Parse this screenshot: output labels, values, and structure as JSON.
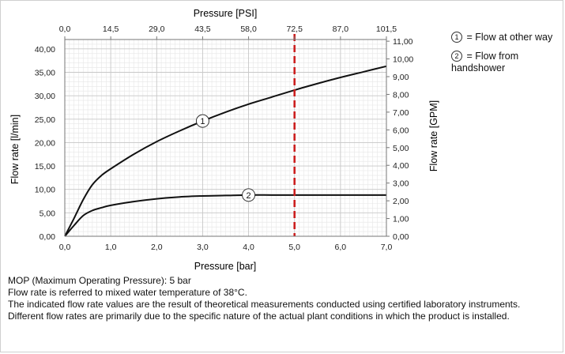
{
  "chart_data": {
    "type": "line",
    "top_axis_label": "Pressure [PSI]",
    "top_ticks": [
      "0,0",
      "14,5",
      "29,0",
      "43,5",
      "58,0",
      "72,5",
      "87,0",
      "101,5"
    ],
    "xlabel": "Pressure [bar]",
    "x_ticks": [
      "0,0",
      "1,0",
      "2,0",
      "3,0",
      "4,0",
      "5,0",
      "6,0",
      "7,0"
    ],
    "xlim": [
      0,
      7
    ],
    "ylabel_left": "Flow rate [l/min]",
    "y_left_ticks": [
      "0,00",
      "5,00",
      "10,00",
      "15,00",
      "20,00",
      "25,00",
      "30,00",
      "35,00",
      "40,00"
    ],
    "ylim_left": [
      0,
      42
    ],
    "ylabel_right": "Flow rate [GPM]",
    "y_right_ticks": [
      "0,00",
      "1,00",
      "2,00",
      "3,00",
      "4,00",
      "5,00",
      "6,00",
      "7,00",
      "8,00",
      "9,00",
      "10,00",
      "11,00"
    ],
    "ylim_right": [
      0,
      11.095
    ],
    "grid": true,
    "mop_line": {
      "x": 5.0,
      "color": "#cc1f1f"
    },
    "series": [
      {
        "marker": "1",
        "x": [
          0,
          0.2,
          0.4,
          0.6,
          0.8,
          1.0,
          1.5,
          2.0,
          2.5,
          3.0,
          3.5,
          4.0,
          4.5,
          5.0,
          5.5,
          6.0,
          6.5,
          7.0
        ],
        "y": [
          0,
          3.8,
          7.8,
          11.0,
          13.0,
          14.4,
          17.5,
          20.2,
          22.5,
          24.6,
          26.5,
          28.2,
          29.7,
          31.2,
          32.6,
          33.9,
          35.1,
          36.3
        ]
      },
      {
        "marker": "2",
        "x": [
          0,
          0.2,
          0.4,
          0.6,
          0.8,
          1.0,
          1.5,
          2.0,
          2.5,
          3.0,
          3.5,
          4.0,
          4.5,
          5.0,
          5.5,
          6.0,
          6.5,
          7.0
        ],
        "y": [
          0,
          2.3,
          4.4,
          5.5,
          6.1,
          6.6,
          7.4,
          8.0,
          8.4,
          8.6,
          8.7,
          8.8,
          8.8,
          8.8,
          8.8,
          8.8,
          8.8,
          8.8
        ]
      }
    ],
    "series_labels": [
      {
        "marker": "1",
        "x": 3.0,
        "y": 24.6
      },
      {
        "marker": "2",
        "x": 4.0,
        "y": 8.8
      }
    ]
  },
  "legend": [
    {
      "marker": "1",
      "text": "= Flow at other way"
    },
    {
      "marker": "2",
      "text": "= Flow from handshower"
    }
  ],
  "notes": [
    "MOP (Maximum Operating Pressure): 5 bar",
    "Flow rate is referred to mixed water temperature of 38°C.",
    "The indicated flow rate values are the result of theoretical measurements conducted using certified laboratory instruments.",
    "Different flow rates are primarily due to the specific nature of the actual plant conditions in which the product is installed."
  ],
  "colors": {
    "curve": "#111111",
    "grid_major": "#c8c8c8",
    "grid_minor": "#e6e6e6",
    "mop": "#cc1f1f"
  }
}
